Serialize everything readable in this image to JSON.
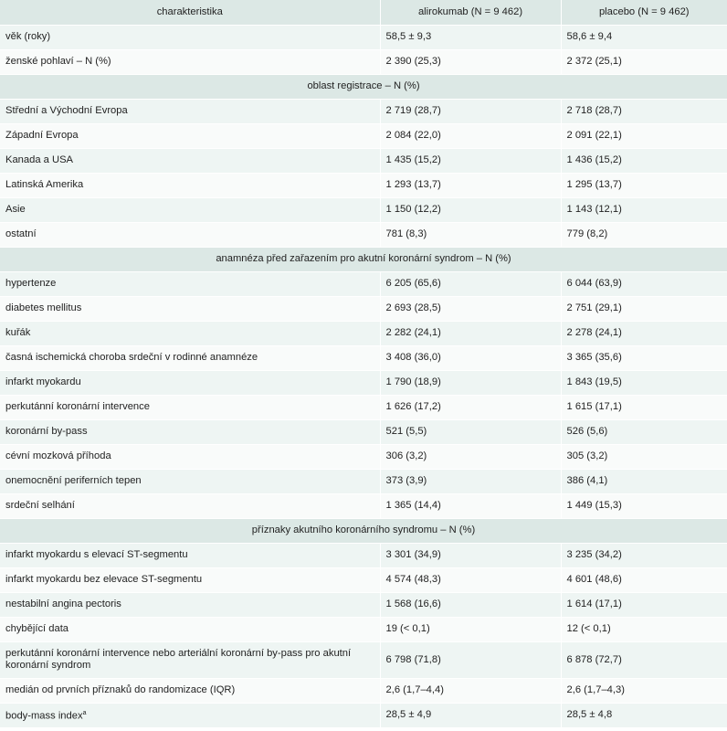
{
  "header": {
    "col1": "charakteristika",
    "col2": "alirokumab (N = 9 462)",
    "col3": "placebo (N = 9 462)"
  },
  "rows": [
    {
      "type": "data",
      "label": "věk (roky)",
      "a": "58,5 ± 9,3",
      "p": "58,6 ± 9,4"
    },
    {
      "type": "data",
      "label": "ženské pohlaví – N (%)",
      "a": "2 390 (25,3)",
      "p": "2 372 (25,1)"
    },
    {
      "type": "section",
      "label": "oblast registrace – N (%)"
    },
    {
      "type": "data",
      "label": "Střední a Východní Evropa",
      "a": "2 719 (28,7)",
      "p": "2 718 (28,7)"
    },
    {
      "type": "data",
      "label": "Západní Evropa",
      "a": "2 084 (22,0)",
      "p": "2 091 (22,1)"
    },
    {
      "type": "data",
      "label": "Kanada a USA",
      "a": "1 435 (15,2)",
      "p": "1 436 (15,2)"
    },
    {
      "type": "data",
      "label": "Latinská Amerika",
      "a": "1 293 (13,7)",
      "p": "1 295 (13,7)"
    },
    {
      "type": "data",
      "label": "Asie",
      "a": "1 150 (12,2)",
      "p": "1 143 (12,1)"
    },
    {
      "type": "data",
      "label": "ostatní",
      "a": "781 (8,3)",
      "p": "779 (8,2)"
    },
    {
      "type": "section",
      "label": "anamnéza před zařazením pro akutní koronární syndrom – N (%)"
    },
    {
      "type": "data",
      "label": "hypertenze",
      "a": "6 205 (65,6)",
      "p": "6 044 (63,9)"
    },
    {
      "type": "data",
      "label": "diabetes mellitus",
      "a": "2 693 (28,5)",
      "p": "2 751 (29,1)"
    },
    {
      "type": "data",
      "label": "kuřák",
      "a": "2 282 (24,1)",
      "p": "2 278 (24,1)"
    },
    {
      "type": "data",
      "label": "časná ischemická choroba srdeční v rodinné anamnéze",
      "a": "3 408 (36,0)",
      "p": "3 365 (35,6)"
    },
    {
      "type": "data",
      "label": "infarkt myokardu",
      "a": "1 790 (18,9)",
      "p": "1 843 (19,5)"
    },
    {
      "type": "data",
      "label": "perkutánní koronární intervence",
      "a": "1 626 (17,2)",
      "p": "1 615 (17,1)"
    },
    {
      "type": "data",
      "label": "koronární by-pass",
      "a": "521 (5,5)",
      "p": "526 (5,6)"
    },
    {
      "type": "data",
      "label": "cévní mozková příhoda",
      "a": "306 (3,2)",
      "p": "305 (3,2)"
    },
    {
      "type": "data",
      "label": "onemocnění periferních tepen",
      "a": "373 (3,9)",
      "p": "386 (4,1)"
    },
    {
      "type": "data",
      "label": "srdeční selhání",
      "a": "1 365 (14,4)",
      "p": "1 449 (15,3)"
    },
    {
      "type": "section",
      "label": "příznaky akutního koronárního syndromu – N (%)"
    },
    {
      "type": "data",
      "label": "infarkt myokardu s elevací ST-segmentu",
      "a": "3 301 (34,9)",
      "p": "3 235 (34,2)"
    },
    {
      "type": "data",
      "label": "infarkt myokardu bez elevace ST-segmentu",
      "a": "4 574 (48,3)",
      "p": "4 601 (48,6)"
    },
    {
      "type": "data",
      "label": "nestabilní angina pectoris",
      "a": "1 568 (16,6)",
      "p": "1 614 (17,1)"
    },
    {
      "type": "data",
      "label": "chybějící data",
      "a": "19 (< 0,1)",
      "p": "12 (< 0,1)"
    },
    {
      "type": "data",
      "tall": true,
      "label": "perkutánní koronární intervence nebo arteriální koronární by-pass pro akutní koronární syndrom",
      "a": "6 798 (71,8)",
      "p": "6 878 (72,7)"
    },
    {
      "type": "data",
      "label": "medián od prvních příznaků do randomizace (IQR)",
      "a": "2,6 (1,7–4,4)",
      "p": "2,6 (1,7–4,3)"
    },
    {
      "type": "data",
      "label": "body-mass index",
      "sup": "a",
      "a": "28,5 ± 4,9",
      "p": "28,5 ± 4,8"
    }
  ]
}
